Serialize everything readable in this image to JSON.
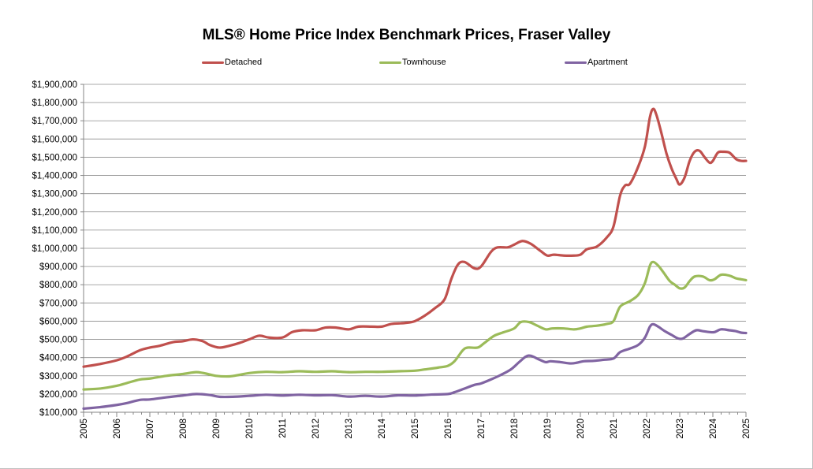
{
  "chart_data": {
    "type": "line",
    "title": "MLS® Home Price Index Benchmark Prices, Fraser Valley",
    "xlabel": "",
    "ylabel": "",
    "xlim": [
      2005,
      2025
    ],
    "ylim": [
      100000,
      1900000
    ],
    "x_ticks": [
      "2005",
      "2006",
      "2007",
      "2008",
      "2009",
      "2010",
      "2011",
      "2012",
      "2013",
      "2014",
      "2015",
      "2016",
      "2017",
      "2018",
      "2019",
      "2020",
      "2021",
      "2022",
      "2023",
      "2024",
      "2025"
    ],
    "y_ticks": [
      "$100,000",
      "$200,000",
      "$300,000",
      "$400,000",
      "$500,000",
      "$600,000",
      "$700,000",
      "$800,000",
      "$900,000",
      "$1,000,000",
      "$1,100,000",
      "$1,200,000",
      "$1,300,000",
      "$1,400,000",
      "$1,500,000",
      "$1,600,000",
      "$1,700,000",
      "$1,800,000",
      "$1,900,000"
    ],
    "grid": true,
    "legend_position": "top",
    "series": [
      {
        "name": "Detached",
        "color": "#C0504D",
        "points": [
          [
            2005,
            350000
          ],
          [
            2005.5,
            365000
          ],
          [
            2006,
            385000
          ],
          [
            2006.3,
            405000
          ],
          [
            2006.7,
            440000
          ],
          [
            2007,
            455000
          ],
          [
            2007.3,
            465000
          ],
          [
            2007.7,
            485000
          ],
          [
            2008,
            490000
          ],
          [
            2008.3,
            500000
          ],
          [
            2008.6,
            490000
          ],
          [
            2008.8,
            470000
          ],
          [
            2009.1,
            455000
          ],
          [
            2009.4,
            465000
          ],
          [
            2009.7,
            480000
          ],
          [
            2010,
            500000
          ],
          [
            2010.3,
            520000
          ],
          [
            2010.6,
            510000
          ],
          [
            2011,
            510000
          ],
          [
            2011.3,
            540000
          ],
          [
            2011.6,
            550000
          ],
          [
            2012,
            550000
          ],
          [
            2012.3,
            565000
          ],
          [
            2012.6,
            565000
          ],
          [
            2013,
            555000
          ],
          [
            2013.3,
            570000
          ],
          [
            2013.7,
            570000
          ],
          [
            2014,
            570000
          ],
          [
            2014.3,
            585000
          ],
          [
            2014.7,
            590000
          ],
          [
            2015,
            600000
          ],
          [
            2015.3,
            630000
          ],
          [
            2015.6,
            670000
          ],
          [
            2015.9,
            720000
          ],
          [
            2016.1,
            830000
          ],
          [
            2016.3,
            910000
          ],
          [
            2016.5,
            925000
          ],
          [
            2016.8,
            890000
          ],
          [
            2017,
            900000
          ],
          [
            2017.3,
            980000
          ],
          [
            2017.5,
            1005000
          ],
          [
            2017.8,
            1005000
          ],
          [
            2018,
            1020000
          ],
          [
            2018.25,
            1040000
          ],
          [
            2018.5,
            1025000
          ],
          [
            2018.8,
            985000
          ],
          [
            2019,
            960000
          ],
          [
            2019.2,
            965000
          ],
          [
            2019.5,
            960000
          ],
          [
            2019.8,
            960000
          ],
          [
            2020.0,
            965000
          ],
          [
            2020.2,
            995000
          ],
          [
            2020.5,
            1010000
          ],
          [
            2020.8,
            1060000
          ],
          [
            2021.0,
            1120000
          ],
          [
            2021.2,
            1290000
          ],
          [
            2021.35,
            1345000
          ],
          [
            2021.5,
            1355000
          ],
          [
            2021.75,
            1450000
          ],
          [
            2021.95,
            1560000
          ],
          [
            2022.1,
            1720000
          ],
          [
            2022.2,
            1765000
          ],
          [
            2022.3,
            1730000
          ],
          [
            2022.45,
            1630000
          ],
          [
            2022.6,
            1520000
          ],
          [
            2022.75,
            1440000
          ],
          [
            2022.9,
            1380000
          ],
          [
            2023.0,
            1350000
          ],
          [
            2023.15,
            1390000
          ],
          [
            2023.3,
            1480000
          ],
          [
            2023.45,
            1530000
          ],
          [
            2023.6,
            1535000
          ],
          [
            2023.75,
            1500000
          ],
          [
            2023.9,
            1470000
          ],
          [
            2024.0,
            1480000
          ],
          [
            2024.15,
            1525000
          ],
          [
            2024.3,
            1530000
          ],
          [
            2024.5,
            1525000
          ],
          [
            2024.7,
            1490000
          ],
          [
            2024.85,
            1480000
          ],
          [
            2025,
            1480000
          ]
        ]
      },
      {
        "name": "Townhouse",
        "color": "#9BBB59",
        "points": [
          [
            2005,
            225000
          ],
          [
            2005.5,
            230000
          ],
          [
            2006,
            245000
          ],
          [
            2006.3,
            260000
          ],
          [
            2006.7,
            280000
          ],
          [
            2007,
            285000
          ],
          [
            2007.5,
            300000
          ],
          [
            2008,
            310000
          ],
          [
            2008.4,
            320000
          ],
          [
            2008.7,
            312000
          ],
          [
            2009,
            300000
          ],
          [
            2009.4,
            297000
          ],
          [
            2009.7,
            305000
          ],
          [
            2010,
            315000
          ],
          [
            2010.5,
            322000
          ],
          [
            2011,
            320000
          ],
          [
            2011.5,
            325000
          ],
          [
            2012,
            322000
          ],
          [
            2012.5,
            325000
          ],
          [
            2013,
            320000
          ],
          [
            2013.5,
            322000
          ],
          [
            2014,
            322000
          ],
          [
            2014.5,
            325000
          ],
          [
            2015,
            328000
          ],
          [
            2015.3,
            335000
          ],
          [
            2015.7,
            345000
          ],
          [
            2016,
            355000
          ],
          [
            2016.2,
            380000
          ],
          [
            2016.45,
            440000
          ],
          [
            2016.6,
            455000
          ],
          [
            2016.9,
            455000
          ],
          [
            2017.1,
            480000
          ],
          [
            2017.4,
            520000
          ],
          [
            2017.7,
            540000
          ],
          [
            2018,
            560000
          ],
          [
            2018.2,
            595000
          ],
          [
            2018.45,
            595000
          ],
          [
            2018.7,
            575000
          ],
          [
            2018.95,
            555000
          ],
          [
            2019.15,
            560000
          ],
          [
            2019.5,
            560000
          ],
          [
            2019.8,
            555000
          ],
          [
            2020,
            560000
          ],
          [
            2020.2,
            570000
          ],
          [
            2020.5,
            575000
          ],
          [
            2020.8,
            585000
          ],
          [
            2021,
            600000
          ],
          [
            2021.2,
            680000
          ],
          [
            2021.5,
            710000
          ],
          [
            2021.75,
            745000
          ],
          [
            2021.95,
            810000
          ],
          [
            2022.1,
            905000
          ],
          [
            2022.2,
            925000
          ],
          [
            2022.35,
            905000
          ],
          [
            2022.5,
            870000
          ],
          [
            2022.7,
            820000
          ],
          [
            2022.85,
            800000
          ],
          [
            2023.0,
            780000
          ],
          [
            2023.15,
            785000
          ],
          [
            2023.3,
            820000
          ],
          [
            2023.45,
            845000
          ],
          [
            2023.7,
            845000
          ],
          [
            2023.9,
            825000
          ],
          [
            2024.05,
            830000
          ],
          [
            2024.25,
            855000
          ],
          [
            2024.5,
            850000
          ],
          [
            2024.7,
            835000
          ],
          [
            2024.85,
            830000
          ],
          [
            2025,
            825000
          ]
        ]
      },
      {
        "name": "Apartment",
        "color": "#8064A2",
        "points": [
          [
            2005,
            120000
          ],
          [
            2005.5,
            128000
          ],
          [
            2006,
            140000
          ],
          [
            2006.3,
            150000
          ],
          [
            2006.7,
            168000
          ],
          [
            2007,
            170000
          ],
          [
            2007.5,
            182000
          ],
          [
            2008,
            192000
          ],
          [
            2008.4,
            200000
          ],
          [
            2008.8,
            195000
          ],
          [
            2009.1,
            185000
          ],
          [
            2009.5,
            185000
          ],
          [
            2010,
            190000
          ],
          [
            2010.5,
            196000
          ],
          [
            2011,
            192000
          ],
          [
            2011.5,
            196000
          ],
          [
            2012,
            193000
          ],
          [
            2012.5,
            194000
          ],
          [
            2013,
            186000
          ],
          [
            2013.5,
            190000
          ],
          [
            2014,
            186000
          ],
          [
            2014.5,
            193000
          ],
          [
            2015,
            192000
          ],
          [
            2015.5,
            197000
          ],
          [
            2016,
            200000
          ],
          [
            2016.2,
            210000
          ],
          [
            2016.5,
            230000
          ],
          [
            2016.8,
            250000
          ],
          [
            2017.0,
            258000
          ],
          [
            2017.3,
            280000
          ],
          [
            2017.6,
            305000
          ],
          [
            2017.9,
            335000
          ],
          [
            2018.15,
            375000
          ],
          [
            2018.35,
            405000
          ],
          [
            2018.5,
            410000
          ],
          [
            2018.75,
            390000
          ],
          [
            2018.95,
            375000
          ],
          [
            2019.1,
            380000
          ],
          [
            2019.4,
            375000
          ],
          [
            2019.7,
            368000
          ],
          [
            2019.9,
            372000
          ],
          [
            2020.1,
            380000
          ],
          [
            2020.4,
            382000
          ],
          [
            2020.7,
            388000
          ],
          [
            2021.0,
            395000
          ],
          [
            2021.2,
            430000
          ],
          [
            2021.5,
            450000
          ],
          [
            2021.75,
            470000
          ],
          [
            2021.95,
            510000
          ],
          [
            2022.1,
            570000
          ],
          [
            2022.2,
            583000
          ],
          [
            2022.35,
            570000
          ],
          [
            2022.55,
            545000
          ],
          [
            2022.75,
            525000
          ],
          [
            2022.95,
            505000
          ],
          [
            2023.1,
            505000
          ],
          [
            2023.3,
            530000
          ],
          [
            2023.5,
            550000
          ],
          [
            2023.7,
            545000
          ],
          [
            2023.9,
            540000
          ],
          [
            2024.05,
            540000
          ],
          [
            2024.25,
            555000
          ],
          [
            2024.5,
            550000
          ],
          [
            2024.7,
            545000
          ],
          [
            2024.85,
            537000
          ],
          [
            2025,
            535000
          ]
        ]
      }
    ]
  }
}
